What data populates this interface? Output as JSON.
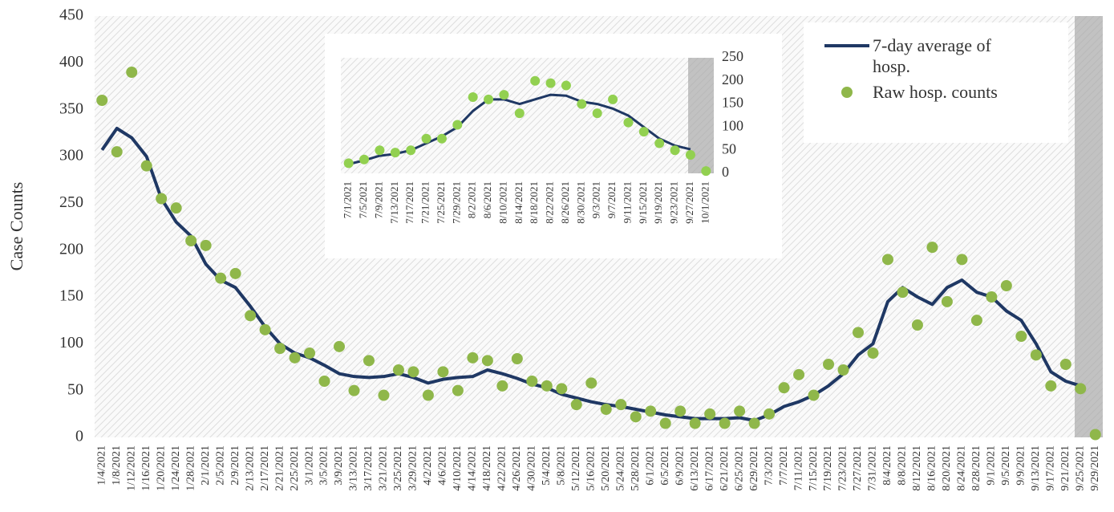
{
  "chart_data": [
    {
      "type": "line_scatter",
      "y_label": "Case Counts",
      "categories": [
        "1/4/2021",
        "1/8/2021",
        "1/12/2021",
        "1/16/2021",
        "1/20/2021",
        "1/24/2021",
        "1/28/2021",
        "2/1/2021",
        "2/5/2021",
        "2/9/2021",
        "2/13/2021",
        "2/17/2021",
        "2/21/2021",
        "2/25/2021",
        "3/1/2021",
        "3/5/2021",
        "3/9/2021",
        "3/13/2021",
        "3/17/2021",
        "3/21/2021",
        "3/25/2021",
        "3/29/2021",
        "4/2/2021",
        "4/6/2021",
        "4/10/2021",
        "4/14/2021",
        "4/18/2021",
        "4/22/2021",
        "4/26/2021",
        "4/30/2021",
        "5/4/2021",
        "5/8/2021",
        "5/12/2021",
        "5/16/2021",
        "5/20/2021",
        "5/24/2021",
        "5/28/2021",
        "6/1/2021",
        "6/5/2021",
        "6/9/2021",
        "6/13/2021",
        "6/17/2021",
        "6/21/2021",
        "6/25/2021",
        "6/29/2021",
        "7/3/2021",
        "7/7/2021",
        "7/11/2021",
        "7/15/2021",
        "7/19/2021",
        "7/23/2021",
        "7/27/2021",
        "7/31/2021",
        "8/4/2021",
        "8/8/2021",
        "8/12/2021",
        "8/16/2021",
        "8/20/2021",
        "8/24/2021",
        "8/28/2021",
        "9/1/2021",
        "9/5/2021",
        "9/9/2021",
        "9/13/2021",
        "9/17/2021",
        "9/21/2021",
        "9/25/2021",
        "9/29/2021"
      ],
      "series": [
        {
          "name": "7-day average of hosp.",
          "kind": "line",
          "color": "#1f3864",
          "values": [
            307,
            330,
            320,
            300,
            255,
            230,
            215,
            185,
            168,
            160,
            140,
            118,
            100,
            90,
            85,
            77,
            68,
            65,
            64,
            65,
            68,
            64,
            58,
            62,
            64,
            65,
            72,
            68,
            63,
            57,
            53,
            46,
            42,
            38,
            35,
            33,
            30,
            27,
            24,
            22,
            20,
            20,
            20,
            21,
            18,
            24,
            33,
            38,
            45,
            55,
            68,
            88,
            100,
            145,
            160,
            150,
            142,
            160,
            168,
            155,
            150,
            135,
            125,
            100,
            70,
            60,
            55,
            null
          ]
        },
        {
          "name": "Raw hosp. counts",
          "kind": "scatter",
          "color": "#8fb74a",
          "values": [
            360,
            305,
            390,
            290,
            255,
            245,
            210,
            205,
            170,
            175,
            130,
            115,
            95,
            85,
            90,
            60,
            97,
            50,
            82,
            45,
            72,
            70,
            45,
            70,
            50,
            85,
            82,
            55,
            84,
            60,
            55,
            52,
            35,
            58,
            30,
            35,
            22,
            28,
            15,
            28,
            15,
            25,
            15,
            28,
            15,
            25,
            53,
            67,
            45,
            78,
            72,
            112,
            90,
            190,
            155,
            120,
            203,
            145,
            190,
            125,
            150,
            162,
            108,
            88,
            55,
            78,
            52,
            3
          ]
        }
      ],
      "ylim": [
        0,
        450
      ],
      "yticks": [
        0,
        50,
        100,
        150,
        200,
        250,
        300,
        350,
        400,
        450
      ]
    },
    {
      "type": "line_scatter",
      "yaxis_side": "right",
      "categories": [
        "7/1/2021",
        "7/5/2021",
        "7/9/2021",
        "7/13/2021",
        "7/17/2021",
        "7/21/2021",
        "7/25/2021",
        "7/29/2021",
        "8/2/2021",
        "8/6/2021",
        "8/10/2021",
        "8/14/2021",
        "8/18/2021",
        "8/22/2021",
        "8/26/2021",
        "8/30/2021",
        "9/3/2021",
        "9/7/2021",
        "9/11/2021",
        "9/15/2021",
        "9/19/2021",
        "9/23/2021",
        "9/27/2021",
        "10/1/2021"
      ],
      "series": [
        {
          "kind": "line",
          "color": "#1f3864",
          "values": [
            20,
            28,
            38,
            42,
            50,
            65,
            80,
            100,
            135,
            160,
            160,
            150,
            160,
            170,
            168,
            155,
            150,
            140,
            125,
            100,
            75,
            60,
            52,
            null
          ]
        },
        {
          "kind": "scatter",
          "color": "#92d050",
          "values": [
            22,
            30,
            50,
            45,
            50,
            75,
            75,
            105,
            165,
            160,
            170,
            130,
            200,
            195,
            190,
            150,
            130,
            160,
            110,
            90,
            65,
            50,
            40,
            5
          ]
        }
      ],
      "ylim": [
        0,
        250
      ],
      "yticks": [
        0,
        50,
        100,
        150,
        200,
        250
      ]
    }
  ]
}
